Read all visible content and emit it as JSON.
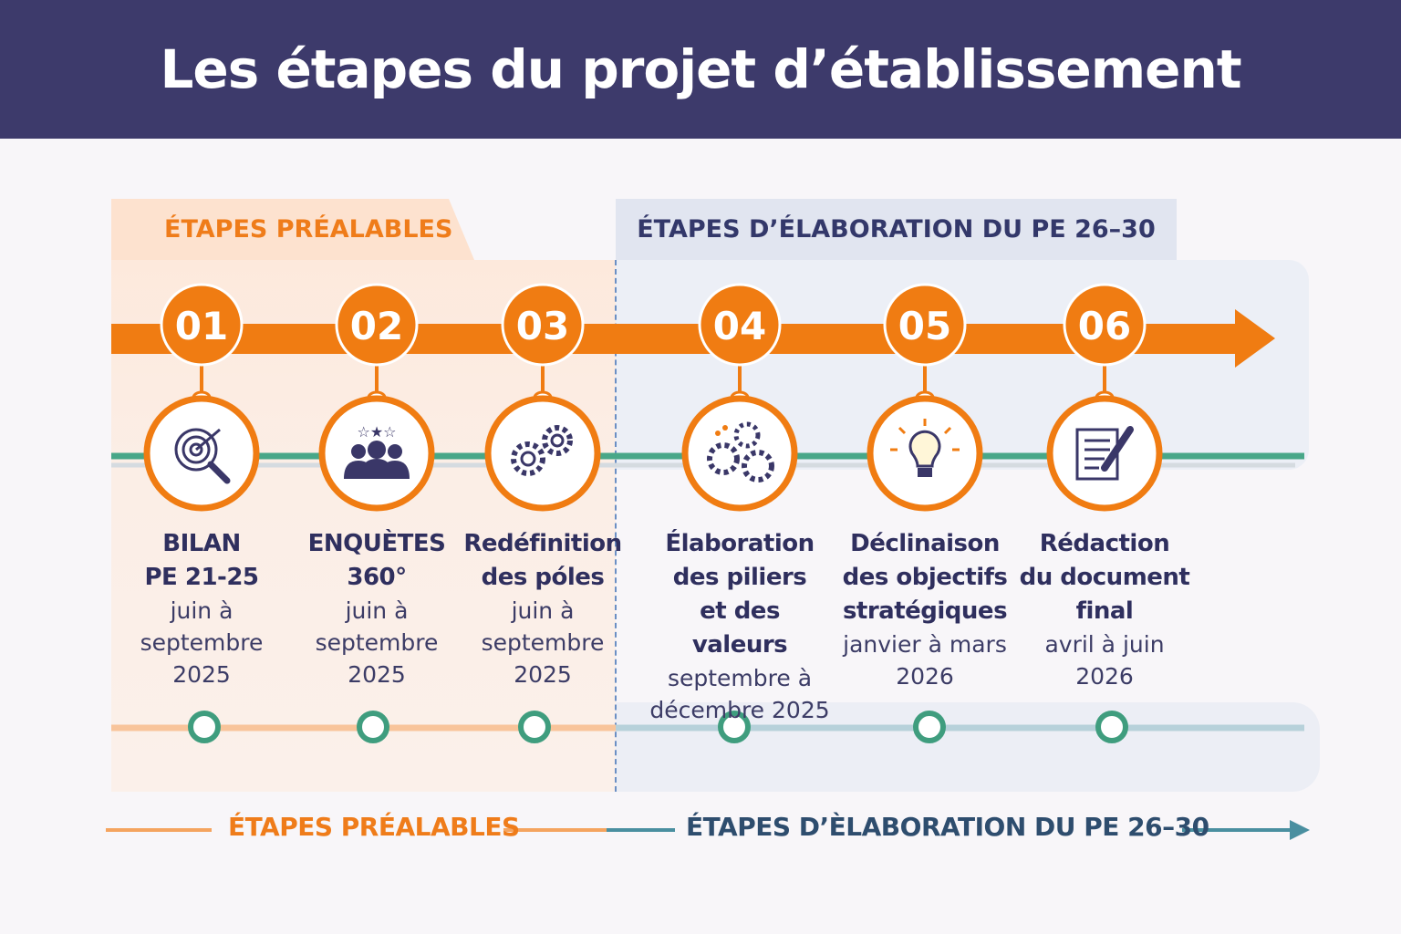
{
  "title": "Les étapes du projet d’établissement",
  "phases": {
    "left_label": "ÉTAPES PRÉALABLES",
    "right_label": "ÉTAPES D’ÉLABORATION DU PE 26–30"
  },
  "steps": [
    {
      "number": "01",
      "title": [
        "BILAN",
        "PE 21-25"
      ],
      "dates": [
        "juin à",
        "septembre",
        "2025"
      ],
      "icon": "target-magnifier-icon"
    },
    {
      "number": "02",
      "title": [
        "ENQUÈTES",
        "360°"
      ],
      "dates": [
        "juin à",
        "septembre",
        "2025"
      ],
      "icon": "team-stars-icon"
    },
    {
      "number": "03",
      "title": [
        "Redéfinition",
        "des póles"
      ],
      "dates": [
        "juin à",
        "septembre",
        "2025"
      ],
      "icon": "gears-icon"
    },
    {
      "number": "04",
      "title": [
        "Élaboration",
        "des piliers",
        "et des valeurs"
      ],
      "dates": [
        "septembre à",
        "décembre 2025"
      ],
      "icon": "three-gears-icon"
    },
    {
      "number": "05",
      "title": [
        "Déclinaison",
        "des objectifs",
        "stratégiques"
      ],
      "dates": [
        "janvier à mars",
        "2026"
      ],
      "icon": "lightbulb-icon"
    },
    {
      "number": "06",
      "title": [
        "Rédaction",
        "du document",
        "final"
      ],
      "dates": [
        "avril à juin",
        "2026"
      ],
      "icon": "document-pen-icon"
    }
  ],
  "legend": {
    "left": "ÉTAPES PRÉALABLES",
    "right": "ÉTAPES D’ÈLABORATION DU PE 26–30"
  },
  "colors": {
    "header": "#3d3a6b",
    "orange": "#f07c12",
    "navy": "#2f2f5e",
    "green": "#3f9d7e",
    "teal": "#4a8fa0"
  }
}
